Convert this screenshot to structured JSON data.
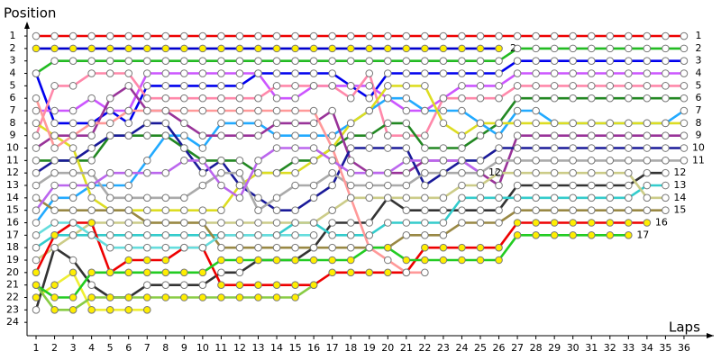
{
  "chart_data": {
    "type": "line",
    "title": "Position",
    "x_label": "Laps",
    "x": [
      1,
      2,
      3,
      4,
      5,
      6,
      7,
      8,
      9,
      10,
      11,
      12,
      13,
      14,
      15,
      16,
      17,
      18,
      19,
      20,
      21,
      22,
      23,
      24,
      25,
      26,
      27,
      28,
      29,
      30,
      31,
      32,
      33,
      34,
      35,
      36
    ],
    "xlim": [
      0.6,
      37.4
    ],
    "xticks": [
      1,
      2,
      3,
      4,
      5,
      6,
      7,
      8,
      9,
      10,
      11,
      12,
      13,
      14,
      15,
      16,
      17,
      18,
      19,
      20,
      21,
      22,
      23,
      24,
      25,
      26,
      27,
      28,
      29,
      30,
      31,
      32,
      33,
      34,
      35,
      36
    ],
    "ylim": [
      0,
      25
    ],
    "yticks": [
      1,
      2,
      3,
      4,
      5,
      6,
      7,
      8,
      9,
      10,
      11,
      12,
      13,
      14,
      15,
      16,
      17,
      18,
      19,
      20,
      21,
      22,
      23,
      24
    ],
    "series": [
      {
        "color": "#ee0000",
        "marker_color": "#ffffff",
        "values": [
          1,
          1,
          1,
          1,
          1,
          1,
          1,
          1,
          1,
          1,
          1,
          1,
          1,
          1,
          1,
          1,
          1,
          1,
          1,
          1,
          1,
          1,
          1,
          1,
          1,
          1,
          1,
          1,
          1,
          1,
          1,
          1,
          1,
          1,
          1,
          1
        ]
      },
      {
        "color": "#0000cc",
        "marker_color": "#ffee00",
        "values": [
          2,
          2,
          2,
          2,
          2,
          2,
          2,
          2,
          2,
          2,
          2,
          2,
          2,
          2,
          2,
          2,
          2,
          2,
          2,
          2,
          2,
          2,
          2,
          2,
          2,
          2,
          null,
          null,
          null,
          null,
          null,
          null,
          null,
          null,
          null,
          null
        ]
      },
      {
        "color": "#22bb22",
        "marker_color": "#ffffff",
        "values": [
          4,
          3,
          3,
          3,
          3,
          3,
          3,
          3,
          3,
          3,
          3,
          3,
          3,
          3,
          3,
          3,
          3,
          3,
          3,
          3,
          3,
          3,
          3,
          3,
          3,
          3,
          2,
          2,
          2,
          2,
          2,
          2,
          2,
          2,
          2,
          2
        ]
      },
      {
        "color": "#0000ee",
        "marker_color": "#ffffff",
        "values": [
          4,
          8,
          8,
          8,
          7,
          8,
          5,
          5,
          5,
          5,
          5,
          5,
          4,
          4,
          4,
          4,
          4,
          5,
          6,
          4,
          4,
          4,
          4,
          4,
          4,
          4,
          3,
          3,
          3,
          3,
          3,
          3,
          3,
          3,
          3,
          3
        ]
      },
      {
        "color": "#cc55ff",
        "marker_color": "#ffffff",
        "values": [
          7,
          7,
          7,
          6,
          7,
          7,
          4,
          4,
          4,
          4,
          4,
          4,
          4,
          6,
          6,
          5,
          5,
          5,
          5,
          6,
          7,
          7,
          6,
          5,
          5,
          5,
          4,
          4,
          4,
          4,
          4,
          4,
          4,
          4,
          4,
          4
        ]
      },
      {
        "color": "#ff88aa",
        "marker_color": "#ffffff",
        "values": [
          9,
          5,
          5,
          4,
          4,
          4,
          6,
          6,
          6,
          6,
          6,
          6,
          6,
          5,
          5,
          5,
          5,
          6,
          4,
          9,
          9,
          9,
          6,
          6,
          6,
          6,
          5,
          5,
          5,
          5,
          5,
          5,
          5,
          5,
          5,
          5
        ]
      },
      {
        "color": "#228822",
        "marker_color": "#ffffff",
        "values": [
          11,
          11,
          11,
          11,
          9,
          9,
          9,
          9,
          10,
          11,
          11,
          11,
          12,
          12,
          11,
          11,
          10,
          9,
          9,
          8,
          8,
          10,
          10,
          10,
          9,
          8,
          6,
          6,
          6,
          6,
          6,
          6,
          6,
          6,
          6,
          6
        ]
      },
      {
        "color": "#22aaff",
        "marker_color": "#ffffff",
        "values": [
          16,
          14,
          14,
          13,
          13,
          13,
          11,
          9,
          9,
          10,
          8,
          8,
          8,
          9,
          9,
          9,
          9,
          8,
          7,
          6,
          6,
          7,
          7,
          7,
          8,
          9,
          7,
          7,
          8,
          8,
          8,
          8,
          8,
          8,
          8,
          7
        ]
      },
      {
        "color": "#dddd22",
        "marker_color": "#ffffff",
        "values": [
          8,
          9,
          10,
          14,
          15,
          15,
          15,
          15,
          15,
          15,
          15,
          13,
          12,
          12,
          12,
          11,
          10,
          8,
          7,
          5,
          5,
          5,
          8,
          9,
          8,
          8,
          8,
          8,
          8,
          8,
          8,
          8,
          8,
          8,
          8,
          8
        ]
      },
      {
        "color": "#eeee33",
        "marker_color": "#ffee00",
        "values": [
          22,
          21,
          20,
          23,
          23,
          23,
          23,
          null,
          null,
          null,
          null,
          null,
          null,
          null,
          null,
          null,
          null,
          null,
          null,
          null,
          null,
          null,
          null,
          null,
          null,
          null,
          null,
          null,
          null,
          null,
          null,
          null,
          null,
          null,
          null,
          null
        ]
      },
      {
        "color": "#993399",
        "marker_color": "#ffffff",
        "values": [
          10,
          9,
          9,
          9,
          6,
          5,
          7,
          7,
          8,
          9,
          9,
          9,
          9,
          8,
          8,
          8,
          7,
          11,
          12,
          12,
          12,
          11,
          11,
          11,
          12,
          13,
          9,
          9,
          9,
          9,
          9,
          9,
          9,
          9,
          9,
          9
        ]
      },
      {
        "color": "#1a1a99",
        "marker_color": "#ffffff",
        "values": [
          12,
          11,
          11,
          10,
          9,
          9,
          8,
          8,
          10,
          12,
          11,
          13,
          14,
          15,
          15,
          14,
          13,
          10,
          10,
          10,
          10,
          13,
          12,
          11,
          11,
          10,
          10,
          10,
          10,
          10,
          10,
          10,
          10,
          10,
          10,
          10
        ]
      },
      {
        "color": "#aaaaaa",
        "marker_color": "#ffffff",
        "values": [
          13,
          12,
          12,
          12,
          14,
          14,
          14,
          14,
          14,
          13,
          12,
          12,
          15,
          14,
          13,
          13,
          12,
          13,
          13,
          13,
          13,
          12,
          12,
          12,
          12,
          11,
          11,
          11,
          11,
          11,
          11,
          11,
          11,
          11,
          11,
          11
        ]
      },
      {
        "color": "#333333",
        "marker_color": "#ffffff",
        "values": [
          23,
          18,
          19,
          21,
          22,
          22,
          21,
          21,
          21,
          21,
          20,
          20,
          19,
          19,
          19,
          18,
          16,
          16,
          16,
          14,
          15,
          15,
          15,
          15,
          15,
          15,
          13,
          13,
          13,
          13,
          13,
          13,
          13,
          12,
          12,
          null
        ]
      },
      {
        "color": "#33cccc",
        "marker_color": "#ffffff",
        "values": [
          18,
          17,
          17,
          17,
          17,
          17,
          17,
          17,
          17,
          17,
          17,
          17,
          17,
          17,
          16,
          16,
          17,
          17,
          17,
          16,
          16,
          16,
          16,
          14,
          14,
          14,
          14,
          14,
          14,
          14,
          14,
          14,
          14,
          13,
          13,
          null
        ]
      },
      {
        "color": "#cccc88",
        "marker_color": "#ffffff",
        "values": [
          19,
          18,
          17,
          16,
          16,
          16,
          16,
          16,
          16,
          16,
          16,
          16,
          16,
          16,
          16,
          16,
          15,
          14,
          14,
          14,
          14,
          14,
          14,
          13,
          13,
          12,
          12,
          12,
          12,
          12,
          12,
          12,
          12,
          14,
          14,
          null
        ]
      },
      {
        "color": "#998844",
        "marker_color": "#ffffff",
        "values": [
          14,
          15,
          15,
          15,
          15,
          15,
          16,
          16,
          16,
          16,
          18,
          18,
          18,
          18,
          18,
          18,
          18,
          18,
          18,
          18,
          17,
          17,
          17,
          16,
          16,
          16,
          15,
          15,
          15,
          15,
          15,
          15,
          15,
          15,
          15,
          null
        ]
      },
      {
        "color": "#ee0000",
        "marker_color": "#ffee00",
        "values": [
          20,
          17,
          16,
          16,
          20,
          19,
          19,
          19,
          18,
          18,
          21,
          21,
          21,
          21,
          21,
          21,
          20,
          20,
          20,
          20,
          20,
          18,
          18,
          18,
          18,
          18,
          16,
          16,
          16,
          16,
          16,
          16,
          16,
          16,
          null,
          null
        ]
      },
      {
        "color": "#22cc22",
        "marker_color": "#ffee00",
        "values": [
          21,
          22,
          22,
          20,
          20,
          20,
          20,
          20,
          20,
          20,
          19,
          19,
          19,
          19,
          19,
          19,
          19,
          19,
          18,
          18,
          19,
          19,
          19,
          19,
          19,
          19,
          17,
          17,
          17,
          17,
          17,
          17,
          17,
          null,
          null,
          null
        ]
      },
      {
        "color": "#88cc44",
        "marker_color": "#ffee00",
        "values": [
          21,
          23,
          23,
          22,
          22,
          22,
          22,
          22,
          22,
          22,
          22,
          22,
          22,
          22,
          22,
          21,
          null,
          null,
          null,
          null,
          null,
          null,
          null,
          null,
          null,
          null,
          null,
          null,
          null,
          null,
          null,
          null,
          null,
          null,
          null,
          null
        ]
      },
      {
        "color": "#ff9999",
        "marker_color": "#ffffff",
        "values": [
          6,
          10,
          9,
          8,
          8,
          7,
          7,
          7,
          7,
          7,
          7,
          7,
          7,
          7,
          7,
          7,
          10,
          14,
          18,
          19,
          20,
          20,
          null,
          null,
          null,
          null,
          null,
          null,
          null,
          null,
          null,
          null,
          null,
          null,
          null,
          null
        ]
      },
      {
        "color": "#66dddd",
        "marker_color": "#ffffff",
        "values": [
          17,
          16,
          16,
          17,
          18,
          18,
          18,
          18,
          18,
          18,
          17,
          17,
          17,
          17,
          17,
          17,
          null,
          null,
          null,
          null,
          null,
          null,
          null,
          null,
          null,
          null,
          null,
          null,
          null,
          null,
          null,
          null,
          null,
          null,
          null,
          null
        ]
      },
      {
        "color": "#bb66ee",
        "marker_color": "#ffffff",
        "values": [
          15,
          13,
          13,
          13,
          12,
          12,
          12,
          12,
          11,
          11,
          13,
          14,
          11,
          10,
          10,
          10,
          11,
          12,
          12,
          12,
          11,
          11,
          11,
          11,
          12,
          null,
          null,
          null,
          null,
          null,
          null,
          null,
          null,
          null,
          null,
          null
        ]
      }
    ]
  }
}
